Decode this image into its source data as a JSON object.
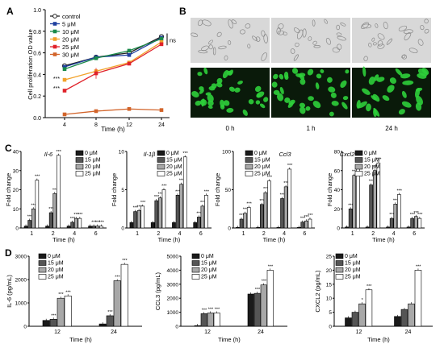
{
  "panels": {
    "A": "A",
    "B": "B",
    "C": "C",
    "D": "D"
  },
  "colors": {
    "control": "#222222",
    "5": "#1f3f9f",
    "10": "#1a8a4a",
    "20": "#f2a22a",
    "25": "#e0222a",
    "30": "#d2642a",
    "bar0": "#1a1a1a",
    "bar15": "#555555",
    "bar20": "#a8a8a8",
    "bar25": "#ffffff",
    "micro_bg": "#d8d8d8",
    "fluor_bg": "#0a1a0a",
    "fluor_cell": "#2ecf3a"
  },
  "chart_data": [
    {
      "id": "A",
      "type": "line",
      "xlabel": "Time (h)",
      "ylabel": "Cell proliferation OD value",
      "x": [
        4,
        8,
        12,
        24
      ],
      "xticks": [
        "4",
        "8",
        "12",
        "24"
      ],
      "ylim": [
        0,
        1.0
      ],
      "yticks": [
        "0.0",
        "0.2",
        "0.4",
        "0.6",
        "0.8",
        "1.0"
      ],
      "series": [
        {
          "name": "control",
          "values": [
            0.48,
            0.56,
            0.6,
            0.75
          ],
          "color": "#222222"
        },
        {
          "name": "5 μM",
          "values": [
            0.47,
            0.56,
            0.58,
            0.74
          ],
          "color": "#1f3f9f"
        },
        {
          "name": "10 μM",
          "values": [
            0.45,
            0.55,
            0.62,
            0.73
          ],
          "color": "#1a8a4a"
        },
        {
          "name": "20 μM",
          "values": [
            0.35,
            0.43,
            0.51,
            0.7
          ],
          "color": "#f2a22a"
        },
        {
          "name": "25 μM",
          "values": [
            0.25,
            0.41,
            0.5,
            0.68
          ],
          "color": "#e0222a"
        },
        {
          "name": "30 μM",
          "values": [
            0.03,
            0.06,
            0.08,
            0.07
          ],
          "color": "#d2642a"
        }
      ],
      "annotations": [
        "***",
        "***",
        "ns"
      ]
    },
    {
      "id": "C1",
      "type": "bar",
      "gene": "Il-6",
      "ylabel": "Fold change",
      "xlabel": "Time (h)",
      "categories": [
        "1",
        "2",
        "4",
        "6"
      ],
      "ylim": [
        0,
        40
      ],
      "yticks": [
        "0",
        "10",
        "20",
        "30",
        "40"
      ],
      "legend": [
        "0 μM",
        "15 μM",
        "20 μM",
        "25 μM"
      ],
      "series": [
        {
          "values": [
            1,
            1,
            1,
            1
          ]
        },
        {
          "values": [
            4,
            8,
            3,
            1
          ]
        },
        {
          "values": [
            10,
            18,
            5,
            1
          ]
        },
        {
          "values": [
            25,
            38,
            5,
            1
          ]
        }
      ],
      "sig": "***"
    },
    {
      "id": "C2",
      "type": "bar",
      "gene": "Il-1β",
      "ylabel": "Fold change",
      "xlabel": "Time (h)",
      "categories": [
        "1",
        "2",
        "4",
        "6"
      ],
      "ylim": [
        0,
        14
      ],
      "yticks": [
        "0",
        "5",
        "10"
      ],
      "legend": [
        "0 μM",
        "15 μM",
        "20 μM",
        "25 μM"
      ],
      "series": [
        {
          "values": [
            1,
            1,
            1,
            1
          ]
        },
        {
          "values": [
            3,
            5,
            6,
            2
          ]
        },
        {
          "values": [
            3.2,
            5.5,
            8,
            4
          ]
        },
        {
          "values": [
            4,
            7,
            13,
            6
          ]
        }
      ],
      "sig": "***"
    },
    {
      "id": "C3",
      "type": "bar",
      "gene": "Ccl3",
      "ylabel": "Fold change",
      "xlabel": "Time (h)",
      "categories": [
        "1",
        "2",
        "4",
        "6"
      ],
      "ylim": [
        0,
        130
      ],
      "yticks": [
        "0",
        "50",
        "100"
      ],
      "legend": [
        "0 μM",
        "15 μM",
        "20 μM",
        "25 μM"
      ],
      "series": [
        {
          "values": [
            1,
            1,
            1,
            1
          ]
        },
        {
          "values": [
            15,
            40,
            50,
            10
          ]
        },
        {
          "values": [
            25,
            60,
            70,
            12
          ]
        },
        {
          "values": [
            35,
            80,
            100,
            15
          ]
        }
      ],
      "sig": "***"
    },
    {
      "id": "C4",
      "type": "bar",
      "gene": "Cxcl2",
      "ylabel": "Fold change",
      "xlabel": "Time (h)",
      "categories": [
        "1",
        "2",
        "4",
        "6"
      ],
      "ylim": [
        0,
        80
      ],
      "yticks": [
        "0",
        "20",
        "40",
        "60",
        "80"
      ],
      "legend": [
        "0 μM",
        "15 μM",
        "20 μM",
        "25 μM"
      ],
      "series": [
        {
          "values": [
            1,
            1,
            1,
            1
          ]
        },
        {
          "values": [
            20,
            45,
            10,
            10
          ]
        },
        {
          "values": [
            55,
            60,
            25,
            12
          ]
        },
        {
          "values": [
            65,
            68,
            35,
            10
          ]
        }
      ],
      "sig": "***"
    },
    {
      "id": "D1",
      "type": "bar",
      "ylabel": "IL-6 (pg/mL)",
      "xlabel": "Time (h)",
      "categories": [
        "12",
        "24"
      ],
      "ylim": [
        0,
        3000
      ],
      "yticks": [
        "0",
        "1000",
        "2000",
        "3000"
      ],
      "legend": [
        "0 μM",
        "15 μM",
        "20 μM",
        "25 μM"
      ],
      "series": [
        {
          "values": [
            250,
            100
          ]
        },
        {
          "values": [
            300,
            450
          ]
        },
        {
          "values": [
            1200,
            1950
          ]
        },
        {
          "values": [
            1300,
            2650
          ]
        }
      ],
      "sig": "***"
    },
    {
      "id": "D2",
      "type": "bar",
      "ylabel": "CCL3 (pg/mL)",
      "xlabel": "Time (h)",
      "categories": [
        "12",
        "24"
      ],
      "ylim": [
        0,
        5000
      ],
      "yticks": [
        "0",
        "1000",
        "2000",
        "3000",
        "4000",
        "5000"
      ],
      "legend": [
        "0 μM",
        "15 μM",
        "20 μM",
        "25 μM"
      ],
      "series": [
        {
          "values": [
            50,
            2300
          ]
        },
        {
          "values": [
            900,
            2350
          ]
        },
        {
          "values": [
            950,
            2950
          ]
        },
        {
          "values": [
            950,
            4000
          ]
        }
      ],
      "sig": "***"
    },
    {
      "id": "D3",
      "type": "bar",
      "ylabel": "CXCL2 (pg/mL)",
      "xlabel": "Time (h)",
      "categories": [
        "12",
        "24"
      ],
      "ylim": [
        0,
        25
      ],
      "yticks": [
        "0",
        "5",
        "10",
        "15",
        "20",
        "25"
      ],
      "legend": [
        "0 μM",
        "15 μM",
        "20 μM",
        "25 μM"
      ],
      "series": [
        {
          "values": [
            3,
            3.5
          ]
        },
        {
          "values": [
            5,
            6
          ]
        },
        {
          "values": [
            8,
            8
          ]
        },
        {
          "values": [
            13,
            20
          ]
        }
      ],
      "sig_labels": [
        [
          "",
          "",
          "*",
          "***"
        ],
        [
          "",
          "",
          "",
          "***"
        ]
      ]
    }
  ],
  "micrographs": {
    "times": [
      "0 h",
      "1 h",
      "24 h"
    ]
  }
}
